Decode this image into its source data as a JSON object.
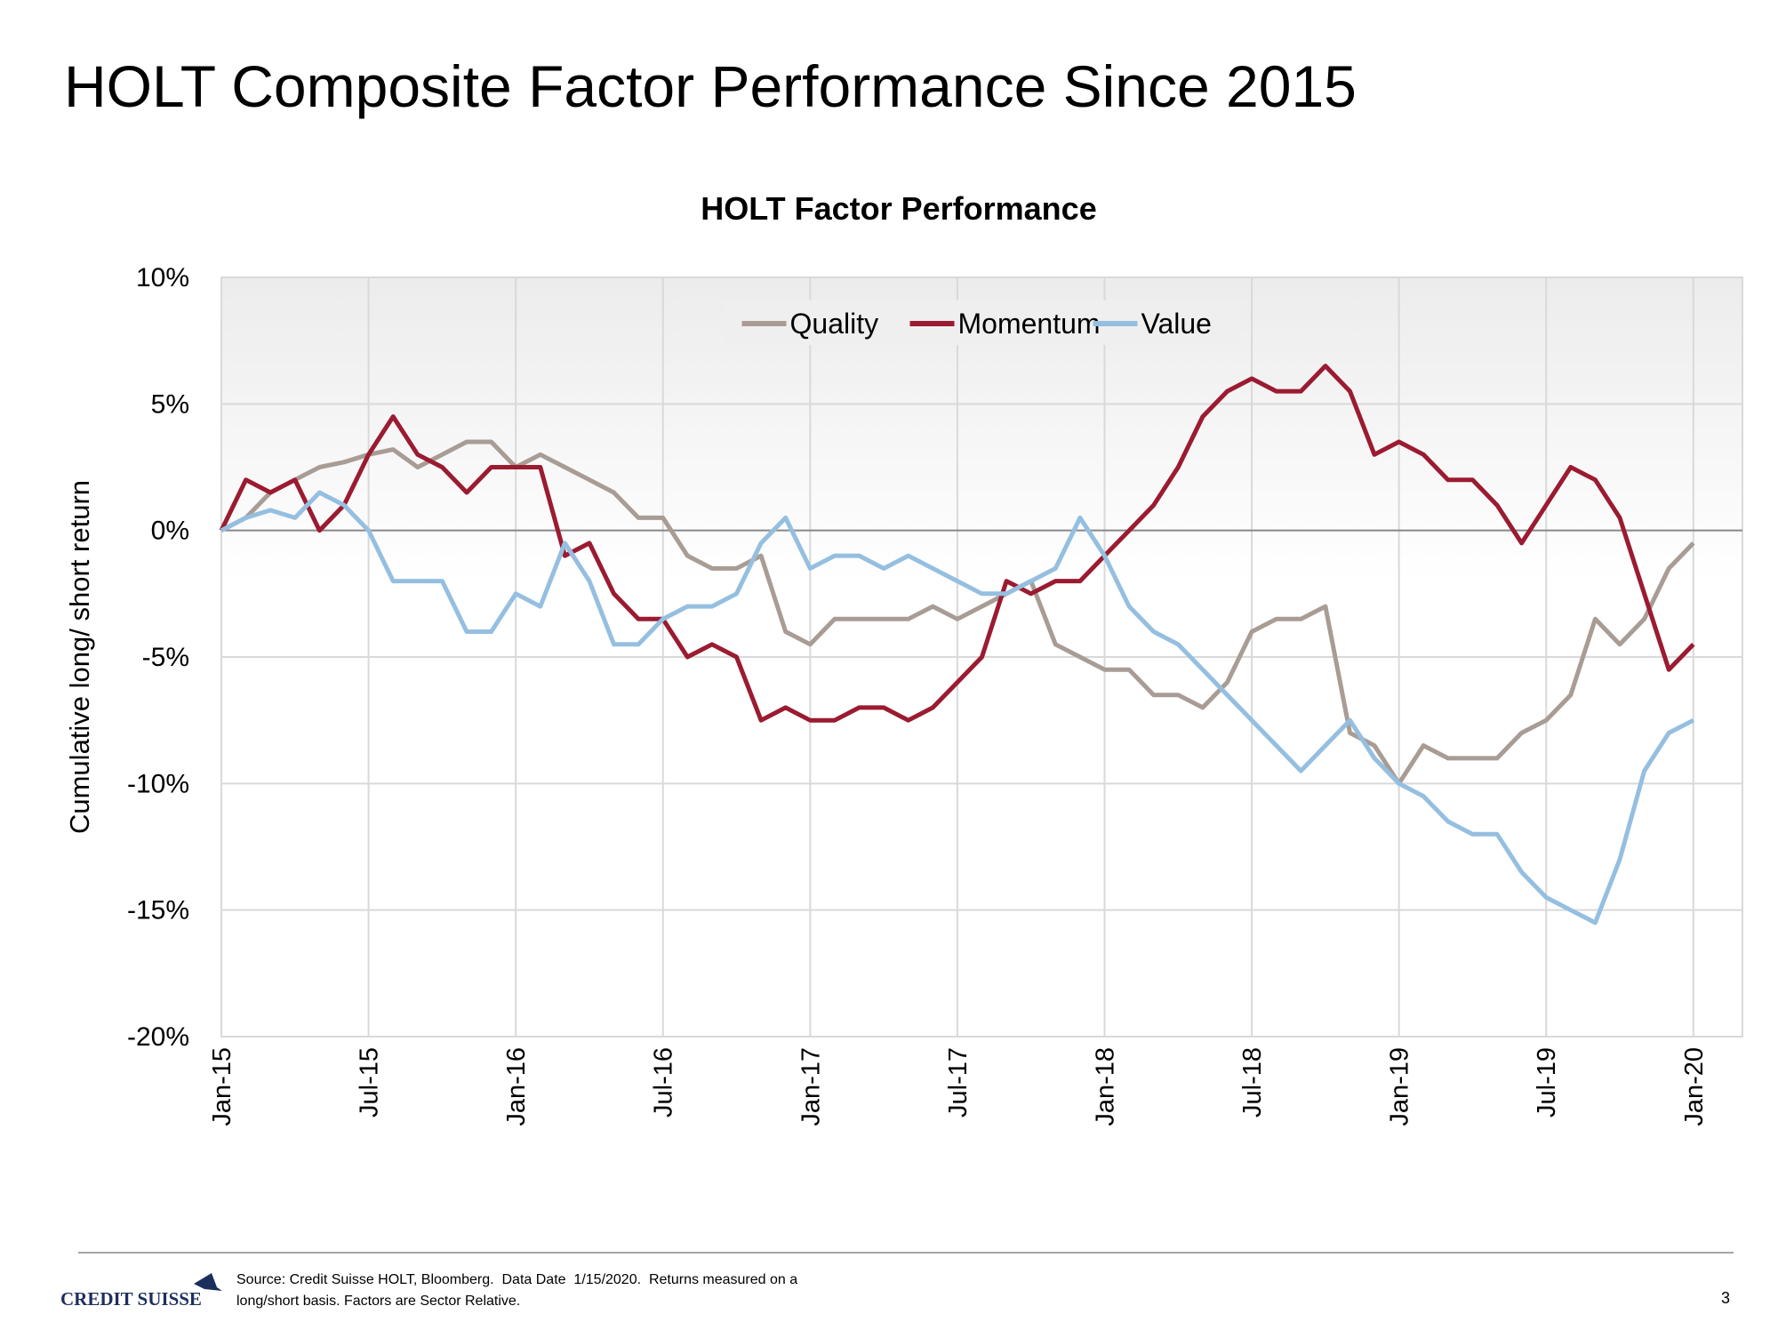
{
  "title": "HOLT Composite Factor Performance Since 2015",
  "chart_data": {
    "type": "line",
    "title": "HOLT Factor Performance",
    "y_label": "Cumulative  long/ short return",
    "x": [
      "2015-01",
      "2015-02",
      "2015-03",
      "2015-04",
      "2015-05",
      "2015-06",
      "2015-07",
      "2015-08",
      "2015-09",
      "2015-10",
      "2015-11",
      "2015-12",
      "2016-01",
      "2016-02",
      "2016-03",
      "2016-04",
      "2016-05",
      "2016-06",
      "2016-07",
      "2016-08",
      "2016-09",
      "2016-10",
      "2016-11",
      "2016-12",
      "2017-01",
      "2017-02",
      "2017-03",
      "2017-04",
      "2017-05",
      "2017-06",
      "2017-07",
      "2017-08",
      "2017-09",
      "2017-10",
      "2017-11",
      "2017-12",
      "2018-01",
      "2018-02",
      "2018-03",
      "2018-04",
      "2018-05",
      "2018-06",
      "2018-07",
      "2018-08",
      "2018-09",
      "2018-10",
      "2018-11",
      "2018-12",
      "2019-01",
      "2019-02",
      "2019-03",
      "2019-04",
      "2019-05",
      "2019-06",
      "2019-07",
      "2019-08",
      "2019-09",
      "2019-10",
      "2019-11",
      "2019-12",
      "2020-01"
    ],
    "xlim": [
      "2015-01",
      "2020-03"
    ],
    "xticks": [
      {
        "value": "2015-01",
        "label": "Jan-15"
      },
      {
        "value": "2015-07",
        "label": "Jul-15"
      },
      {
        "value": "2016-01",
        "label": "Jan-16"
      },
      {
        "value": "2016-07",
        "label": "Jul-16"
      },
      {
        "value": "2017-01",
        "label": "Jan-17"
      },
      {
        "value": "2017-07",
        "label": "Jul-17"
      },
      {
        "value": "2018-01",
        "label": "Jan-18"
      },
      {
        "value": "2018-07",
        "label": "Jul-18"
      },
      {
        "value": "2019-01",
        "label": "Jan-19"
      },
      {
        "value": "2019-07",
        "label": "Jul-19"
      },
      {
        "value": "2020-01",
        "label": "Jan-20"
      }
    ],
    "ylim": [
      -20,
      10
    ],
    "yticks": [
      {
        "value": -20,
        "label": "-20%"
      },
      {
        "value": -15,
        "label": "-15%"
      },
      {
        "value": -10,
        "label": "-10%"
      },
      {
        "value": -5,
        "label": "-5%"
      },
      {
        "value": 0,
        "label": "0%"
      },
      {
        "value": 5,
        "label": "5%"
      },
      {
        "value": 10,
        "label": "10%"
      }
    ],
    "grid": true,
    "legend": "top",
    "series": [
      {
        "name": "Quality",
        "color": "#a89c94",
        "values": [
          0,
          0.5,
          1.5,
          2.0,
          2.5,
          2.7,
          3.0,
          3.2,
          2.5,
          3.0,
          3.5,
          3.5,
          2.5,
          3.0,
          2.5,
          2.0,
          1.5,
          0.5,
          0.5,
          -1.0,
          -1.5,
          -1.5,
          -1.0,
          -4.0,
          -4.5,
          -3.5,
          -3.5,
          -3.5,
          -3.5,
          -3.0,
          -3.5,
          -3.0,
          -2.5,
          -2.0,
          -4.5,
          -5.0,
          -5.5,
          -5.5,
          -6.5,
          -6.5,
          -7.0,
          -6.0,
          -4.0,
          -3.5,
          -3.5,
          -3.0,
          -8.0,
          -8.5,
          -10.0,
          -8.5,
          -9.0,
          -9.0,
          -9.0,
          -8.0,
          -7.5,
          -6.5,
          -3.5,
          -4.5,
          -3.5,
          -1.5,
          -0.5
        ]
      },
      {
        "name": "Momentum",
        "color": "#9b1b30",
        "values": [
          0,
          2.0,
          1.5,
          2.0,
          0.0,
          1.0,
          3.0,
          4.5,
          3.0,
          2.5,
          1.5,
          2.5,
          2.5,
          2.5,
          -1.0,
          -0.5,
          -2.5,
          -3.5,
          -3.5,
          -5.0,
          -4.5,
          -5.0,
          -7.5,
          -7.0,
          -7.5,
          -7.5,
          -7.0,
          -7.0,
          -7.5,
          -7.0,
          -6.0,
          -5.0,
          -2.0,
          -2.5,
          -2.0,
          -2.0,
          -1.0,
          0.0,
          1.0,
          2.5,
          4.5,
          5.5,
          6.0,
          5.5,
          5.5,
          6.5,
          5.5,
          3.0,
          3.5,
          3.0,
          2.0,
          2.0,
          1.0,
          -0.5,
          1.0,
          2.5,
          2.0,
          0.5,
          -2.5,
          -5.5,
          -4.5
        ]
      },
      {
        "name": "Value",
        "color": "#95bfe0",
        "values": [
          0,
          0.5,
          0.8,
          0.5,
          1.5,
          1.0,
          0.0,
          -2.0,
          -2.0,
          -2.0,
          -4.0,
          -4.0,
          -2.5,
          -3.0,
          -0.5,
          -2.0,
          -4.5,
          -4.5,
          -3.5,
          -3.0,
          -3.0,
          -2.5,
          -0.5,
          0.5,
          -1.5,
          -1.0,
          -1.0,
          -1.5,
          -1.0,
          -1.5,
          -2.0,
          -2.5,
          -2.5,
          -2.0,
          -1.5,
          0.5,
          -1.0,
          -3.0,
          -4.0,
          -4.5,
          -5.5,
          -6.5,
          -7.5,
          -8.5,
          -9.5,
          -8.5,
          -7.5,
          -9.0,
          -10.0,
          -10.5,
          -11.5,
          -12.0,
          -12.0,
          -13.5,
          -14.5,
          -15.0,
          -15.5,
          -13.0,
          -9.5,
          -8.0,
          -7.5
        ]
      }
    ]
  },
  "footer": {
    "logo": "CREDIT SUISSE",
    "source": [
      "Source: Credit Suisse HOLT, Bloomberg.  Data Date  1/15/2020.  Returns measured on a",
      "long/short basis. Factors are Sector Relative."
    ],
    "page_number": 3
  }
}
